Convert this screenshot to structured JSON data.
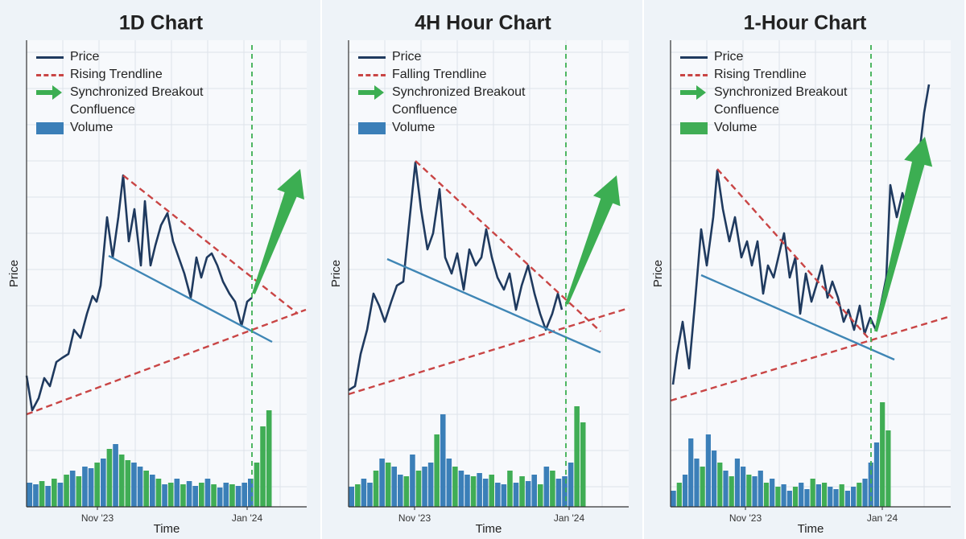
{
  "chart_data": [
    {
      "type": "line",
      "title": "1D Chart",
      "xlabel": "Time",
      "ylabel": "Price",
      "xlim": [
        0,
        348
      ],
      "ylim": [
        0,
        580
      ],
      "y2lim": [
        0,
        580
      ],
      "grid": true,
      "xticks": [
        {
          "value": 88,
          "label": "Nov '23"
        },
        {
          "value": 274,
          "label": "Jan '24"
        }
      ],
      "breakout_x": 280,
      "breakout_color": "#3cae52",
      "series": [
        {
          "name": "Price",
          "color": "#1f3a5f",
          "x": [
            0,
            7,
            15,
            22,
            29,
            37,
            44,
            52,
            59,
            67,
            75,
            82,
            87,
            92,
            100,
            107,
            114,
            120,
            127,
            134,
            142,
            147,
            154,
            160,
            167,
            175,
            182,
            189,
            196,
            204,
            211,
            217,
            224,
            230,
            237,
            244,
            252,
            259,
            267,
            274,
            280
          ],
          "values": [
            163,
            120,
            135,
            160,
            150,
            180,
            185,
            190,
            220,
            210,
            240,
            262,
            255,
            275,
            360,
            310,
            360,
            412,
            330,
            370,
            300,
            380,
            300,
            325,
            350,
            365,
            330,
            310,
            290,
            260,
            310,
            285,
            310,
            315,
            300,
            280,
            265,
            255,
            225,
            255,
            260
          ]
        },
        {
          "name": "Rising Trendline",
          "color": "#c94545",
          "dash": true,
          "x": [
            0,
            347
          ],
          "values": [
            115,
            245
          ]
        },
        {
          "color": "#c94545",
          "dash": true,
          "x": [
            120,
            337
          ],
          "values": [
            412,
            240
          ]
        },
        {
          "color": "#3f86b5",
          "x": [
            102,
            305
          ],
          "values": [
            312,
            205
          ]
        },
        {
          "name": "Synchronized Breakout Confluence",
          "type": "arrow",
          "color": "#3cae52",
          "x": [
            282,
            340
          ],
          "values": [
            265,
            420
          ]
        },
        {
          "name": "Volume",
          "type": "bar",
          "axis": "y2",
          "color": "#3b7fb8",
          "values": [
            30,
            28,
            32,
            26,
            35,
            30,
            40,
            45,
            38,
            50,
            48,
            55,
            60,
            72,
            78,
            65,
            58,
            55,
            50,
            45,
            40,
            35,
            28,
            30,
            35,
            28,
            32,
            26,
            30,
            35,
            28,
            24,
            30,
            28,
            26,
            30,
            35,
            55,
            100,
            120
          ],
          "colors": [
            "#3b7fb8",
            "#3b7fb8",
            "#40ad55",
            "#3b7fb8",
            "#40ad55",
            "#3b7fb8",
            "#40ad55",
            "#3b7fb8",
            "#40ad55",
            "#3b7fb8",
            "#3b7fb8",
            "#40ad55",
            "#3b7fb8",
            "#40ad55",
            "#3b7fb8",
            "#40ad55",
            "#40ad55",
            "#3b7fb8",
            "#3b7fb8",
            "#40ad55",
            "#3b7fb8",
            "#40ad55",
            "#3b7fb8",
            "#40ad55",
            "#3b7fb8",
            "#40ad55",
            "#3b7fb8",
            "#3b7fb8",
            "#40ad55",
            "#3b7fb8",
            "#40ad55",
            "#3b7fb8",
            "#3b7fb8",
            "#40ad55",
            "#3b7fb8",
            "#3b7fb8",
            "#3b7fb8",
            "#40ad55",
            "#40ad55",
            "#40ad55"
          ]
        }
      ]
    },
    {
      "type": "line",
      "title": "4H Hour Chart",
      "xlabel": "Time",
      "ylabel": "Price",
      "xlim": [
        0,
        348
      ],
      "ylim": [
        0,
        580
      ],
      "y2lim": [
        0,
        580
      ],
      "grid": true,
      "xticks": [
        {
          "value": 82,
          "label": "Nov '23"
        },
        {
          "value": 274,
          "label": "Jan '24"
        }
      ],
      "breakout_x": 270,
      "breakout_color": "#3cae52",
      "series": [
        {
          "name": "Price",
          "color": "#1f3a5f",
          "x": [
            0,
            8,
            15,
            23,
            31,
            38,
            45,
            53,
            60,
            68,
            75,
            83,
            90,
            98,
            105,
            113,
            120,
            128,
            135,
            143,
            150,
            158,
            165,
            171,
            178,
            185,
            193,
            200,
            208,
            215,
            223,
            231,
            238,
            245,
            253,
            260,
            265
          ],
          "values": [
            145,
            150,
            190,
            220,
            265,
            250,
            230,
            255,
            275,
            280,
            350,
            428,
            370,
            320,
            340,
            395,
            310,
            290,
            315,
            270,
            320,
            300,
            310,
            345,
            310,
            285,
            270,
            290,
            245,
            275,
            300,
            265,
            240,
            220,
            240,
            265,
            245
          ]
        },
        {
          "name": "Falling Trendline",
          "color": "#c94545",
          "dash": true,
          "x": [
            83,
            313
          ],
          "values": [
            430,
            218
          ]
        },
        {
          "color": "#c94545",
          "dash": true,
          "x": [
            0,
            348
          ],
          "values": [
            140,
            247
          ]
        },
        {
          "color": "#3f86b5",
          "x": [
            48,
            313
          ],
          "values": [
            308,
            192
          ]
        },
        {
          "name": "Synchronized Breakout Confluence",
          "type": "arrow",
          "color": "#3cae52",
          "x": [
            271,
            333
          ],
          "values": [
            252,
            412
          ]
        },
        {
          "name": "Volume",
          "type": "bar",
          "axis": "y2",
          "color": "#3b7fb8",
          "values": [
            25,
            28,
            35,
            30,
            45,
            60,
            55,
            50,
            40,
            38,
            65,
            45,
            50,
            55,
            90,
            115,
            60,
            50,
            45,
            40,
            38,
            42,
            35,
            40,
            30,
            28,
            45,
            30,
            38,
            32,
            40,
            28,
            50,
            45,
            35,
            38,
            55,
            125,
            105
          ],
          "colors": [
            "#3b7fb8",
            "#40ad55",
            "#3b7fb8",
            "#3b7fb8",
            "#40ad55",
            "#3b7fb8",
            "#40ad55",
            "#3b7fb8",
            "#3b7fb8",
            "#40ad55",
            "#3b7fb8",
            "#40ad55",
            "#3b7fb8",
            "#3b7fb8",
            "#40ad55",
            "#3b7fb8",
            "#3b7fb8",
            "#40ad55",
            "#3b7fb8",
            "#3b7fb8",
            "#40ad55",
            "#3b7fb8",
            "#3b7fb8",
            "#40ad55",
            "#3b7fb8",
            "#3b7fb8",
            "#40ad55",
            "#3b7fb8",
            "#40ad55",
            "#3b7fb8",
            "#3b7fb8",
            "#40ad55",
            "#3b7fb8",
            "#40ad55",
            "#3b7fb8",
            "#3b7fb8",
            "#3b7fb8",
            "#40ad55",
            "#40ad55"
          ]
        }
      ]
    },
    {
      "type": "line",
      "title": "1-Hour Chart",
      "xlabel": "Time",
      "ylabel": "Price",
      "xlim": [
        0,
        348
      ],
      "ylim": [
        0,
        580
      ],
      "y2lim": [
        0,
        580
      ],
      "grid": true,
      "xticks": [
        {
          "value": 93,
          "label": "Nov '23"
        },
        {
          "value": 263,
          "label": "Jan '24"
        }
      ],
      "breakout_x": 249,
      "breakout_color": "#3cae52",
      "series": [
        {
          "name": "Price",
          "color": "#1f3a5f",
          "x": [
            3,
            8,
            15,
            23,
            30,
            38,
            45,
            53,
            58,
            65,
            73,
            80,
            88,
            95,
            101,
            108,
            115,
            121,
            128,
            135,
            141,
            148,
            155,
            161,
            168,
            175,
            181,
            188,
            195,
            201,
            208,
            215,
            221,
            228,
            235,
            241,
            248,
            255,
            261,
            268,
            273,
            281,
            288,
            295,
            301,
            308,
            315,
            321
          ],
          "values": [
            152,
            190,
            230,
            172,
            250,
            345,
            300,
            360,
            418,
            370,
            330,
            360,
            310,
            330,
            300,
            330,
            265,
            300,
            285,
            315,
            340,
            285,
            310,
            240,
            290,
            255,
            275,
            300,
            260,
            280,
            260,
            230,
            245,
            220,
            250,
            215,
            235,
            220,
            250,
            285,
            400,
            360,
            390,
            365,
            380,
            430,
            490,
            525
          ]
        },
        {
          "name": "Rising Trendline",
          "color": "#c94545",
          "dash": true,
          "x": [
            0,
            348
          ],
          "values": [
            132,
            237
          ]
        },
        {
          "color": "#c94545",
          "dash": true,
          "x": [
            58,
            250
          ],
          "values": [
            420,
            205
          ]
        },
        {
          "color": "#3f86b5",
          "x": [
            38,
            278
          ],
          "values": [
            288,
            183
          ]
        },
        {
          "name": "Synchronized Breakout Confluence",
          "type": "arrow",
          "color": "#3cae52",
          "x": [
            255,
            316
          ],
          "values": [
            218,
            460
          ]
        },
        {
          "name": "Volume",
          "type": "bar",
          "axis": "y2",
          "color": "#40ad55",
          "values": [
            20,
            30,
            40,
            85,
            60,
            50,
            90,
            70,
            55,
            45,
            38,
            60,
            50,
            40,
            38,
            45,
            30,
            35,
            25,
            28,
            20,
            25,
            30,
            22,
            35,
            28,
            30,
            25,
            22,
            28,
            20,
            25,
            30,
            35,
            55,
            80,
            130,
            95
          ],
          "colors": [
            "#3b7fb8",
            "#40ad55",
            "#3b7fb8",
            "#3b7fb8",
            "#3b7fb8",
            "#40ad55",
            "#3b7fb8",
            "#3b7fb8",
            "#40ad55",
            "#3b7fb8",
            "#40ad55",
            "#3b7fb8",
            "#3b7fb8",
            "#40ad55",
            "#3b7fb8",
            "#3b7fb8",
            "#40ad55",
            "#3b7fb8",
            "#40ad55",
            "#3b7fb8",
            "#3b7fb8",
            "#40ad55",
            "#3b7fb8",
            "#3b7fb8",
            "#40ad55",
            "#3b7fb8",
            "#40ad55",
            "#3b7fb8",
            "#3b7fb8",
            "#40ad55",
            "#3b7fb8",
            "#3b7fb8",
            "#40ad55",
            "#3b7fb8",
            "#3b7fb8",
            "#3b7fb8",
            "#40ad55",
            "#40ad55"
          ]
        }
      ]
    }
  ]
}
